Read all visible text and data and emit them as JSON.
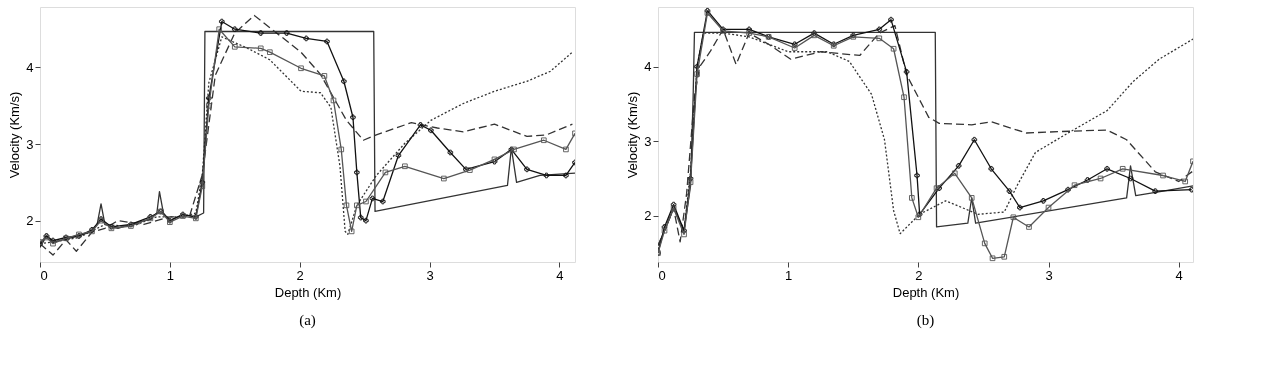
{
  "chart_data": [
    {
      "type": "line",
      "title": "(a)",
      "xlabel": "Depth (Km)",
      "ylabel": "Velocity (Km/s)",
      "xlim": [
        0,
        4.12
      ],
      "ylim": [
        1.46,
        4.79
      ],
      "xticks": [
        0,
        1,
        2,
        3,
        4
      ],
      "yticks": [
        2,
        3,
        4
      ],
      "grid": false,
      "series": [
        {
          "color": "#333333",
          "line_style": "solid",
          "marker": "none",
          "x": [
            0,
            0.05,
            0.1,
            0.2,
            0.3,
            0.4,
            0.44,
            0.47,
            0.5,
            0.6,
            0.7,
            0.85,
            0.9,
            0.92,
            0.95,
            1.0,
            1.1,
            1.2,
            1.26,
            1.27,
            2.57,
            2.58,
            3.6,
            3.63,
            3.67,
            3.85,
            4.12
          ],
          "values": [
            1.65,
            1.8,
            1.72,
            1.76,
            1.8,
            1.86,
            1.95,
            2.22,
            1.95,
            1.9,
            1.95,
            2.02,
            2.1,
            2.38,
            2.1,
            2.0,
            2.08,
            2.05,
            2.1,
            4.47,
            4.47,
            2.12,
            2.46,
            2.95,
            2.5,
            2.59,
            2.62
          ]
        },
        {
          "color": "#333333",
          "line_style": "dashed",
          "marker": "none",
          "x": [
            0,
            0.1,
            0.2,
            0.28,
            0.4,
            0.5,
            0.6,
            0.8,
            1.0,
            1.15,
            1.25,
            1.35,
            1.5,
            1.65,
            1.77,
            2.01,
            2.16,
            2.36,
            2.49,
            2.59,
            2.86,
            3.06,
            3.26,
            3.5,
            3.75,
            3.9,
            4.1
          ],
          "values": [
            1.7,
            1.55,
            1.75,
            1.6,
            1.85,
            1.9,
            2.0,
            1.95,
            2.05,
            2.05,
            2.6,
            3.9,
            4.45,
            4.68,
            4.52,
            4.2,
            3.91,
            3.31,
            3.05,
            3.12,
            3.28,
            3.21,
            3.16,
            3.26,
            3.1,
            3.12,
            3.26
          ]
        },
        {
          "color": "#333333",
          "line_style": "dotted",
          "marker": "none",
          "x": [
            0,
            0.1,
            0.2,
            0.3,
            0.5,
            0.7,
            0.9,
            1.1,
            1.2,
            1.25,
            1.3,
            1.4,
            1.6,
            1.77,
            2.01,
            2.16,
            2.24,
            2.31,
            2.35,
            2.37,
            2.44,
            2.59,
            2.81,
            3.01,
            3.26,
            3.5,
            3.75,
            3.93,
            4.1
          ],
          "values": [
            1.7,
            1.72,
            1.75,
            1.78,
            1.95,
            1.92,
            2.05,
            2.05,
            2.1,
            2.6,
            3.8,
            4.4,
            4.25,
            4.1,
            3.69,
            3.67,
            3.48,
            2.71,
            1.86,
            1.82,
            2.2,
            2.59,
            3.01,
            3.31,
            3.53,
            3.69,
            3.82,
            3.95,
            4.2
          ]
        },
        {
          "color": "#111111",
          "line_style": "solid",
          "marker": "cross",
          "x": [
            0,
            0.05,
            0.1,
            0.2,
            0.3,
            0.4,
            0.47,
            0.55,
            0.7,
            0.85,
            0.93,
            1.0,
            1.1,
            1.2,
            1.25,
            1.3,
            1.4,
            1.5,
            1.7,
            1.9,
            2.05,
            2.21,
            2.34,
            2.41,
            2.44,
            2.47,
            2.51,
            2.56,
            2.64,
            2.76,
            2.93,
            3.01,
            3.16,
            3.28,
            3.5,
            3.63,
            3.75,
            3.9,
            4.05,
            4.12
          ],
          "values": [
            1.7,
            1.8,
            1.74,
            1.78,
            1.8,
            1.88,
            2.02,
            1.92,
            1.95,
            2.05,
            2.12,
            2.0,
            2.08,
            2.05,
            2.5,
            3.6,
            4.6,
            4.5,
            4.45,
            4.45,
            4.38,
            4.34,
            3.82,
            3.35,
            2.63,
            2.04,
            2.0,
            2.29,
            2.25,
            2.85,
            3.25,
            3.18,
            2.89,
            2.67,
            2.77,
            2.93,
            2.67,
            2.59,
            2.59,
            2.76
          ]
        },
        {
          "color": "#555555",
          "line_style": "solid",
          "marker": "square",
          "x": [
            0,
            0.05,
            0.1,
            0.2,
            0.3,
            0.4,
            0.47,
            0.55,
            0.7,
            0.85,
            0.93,
            1.0,
            1.1,
            1.2,
            1.25,
            1.3,
            1.38,
            1.5,
            1.7,
            1.77,
            2.01,
            2.19,
            2.26,
            2.32,
            2.36,
            2.4,
            2.44,
            2.51,
            2.66,
            2.81,
            3.11,
            3.31,
            3.5,
            3.65,
            3.88,
            4.05,
            4.12
          ],
          "values": [
            1.72,
            1.78,
            1.7,
            1.77,
            1.82,
            1.86,
            2.0,
            1.9,
            1.93,
            2.03,
            2.12,
            1.98,
            2.06,
            2.03,
            2.45,
            3.5,
            4.5,
            4.27,
            4.25,
            4.2,
            3.99,
            3.89,
            3.57,
            2.93,
            2.2,
            1.86,
            2.2,
            2.25,
            2.63,
            2.71,
            2.55,
            2.66,
            2.8,
            2.93,
            3.05,
            2.93,
            3.14
          ]
        }
      ]
    },
    {
      "type": "line",
      "title": "(b)",
      "xlabel": "Depth (Km)",
      "ylabel": "Velocity (Km/s)",
      "xlim": [
        0,
        4.11
      ],
      "ylim": [
        1.38,
        4.8
      ],
      "xticks": [
        0,
        1,
        2,
        3,
        4
      ],
      "yticks": [
        2,
        3,
        4
      ],
      "grid": false,
      "series": [
        {
          "color": "#333333",
          "line_style": "solid",
          "marker": "none",
          "x": [
            0,
            0.05,
            0.12,
            0.2,
            0.25,
            0.27,
            0.28,
            2.13,
            2.14,
            2.38,
            2.41,
            2.44,
            3.6,
            3.63,
            3.67,
            3.88,
            4.11
          ],
          "values": [
            1.6,
            1.8,
            2.1,
            1.8,
            2.4,
            3.6,
            4.46,
            4.46,
            1.85,
            1.9,
            2.24,
            1.9,
            2.24,
            2.67,
            2.27,
            2.33,
            2.4
          ]
        },
        {
          "color": "#333333",
          "line_style": "dashed",
          "marker": "none",
          "x": [
            0,
            0.05,
            0.12,
            0.17,
            0.22,
            0.28,
            0.32,
            0.4,
            0.5,
            0.6,
            0.7,
            0.85,
            1.02,
            1.25,
            1.55,
            1.7,
            1.82,
            1.91,
            2.08,
            2.16,
            2.41,
            2.56,
            2.83,
            3.1,
            3.45,
            3.6,
            3.82,
            4.0,
            4.11
          ],
          "values": [
            1.6,
            1.8,
            2.1,
            1.65,
            2.3,
            3.6,
            4.0,
            4.2,
            4.5,
            4.03,
            4.45,
            4.3,
            4.1,
            4.2,
            4.15,
            4.45,
            4.55,
            3.89,
            3.32,
            3.24,
            3.22,
            3.26,
            3.11,
            3.13,
            3.15,
            3.02,
            2.59,
            2.46,
            2.6
          ]
        },
        {
          "color": "#333333",
          "line_style": "dotted",
          "marker": "none",
          "x": [
            0,
            0.05,
            0.12,
            0.2,
            0.25,
            0.3,
            0.35,
            0.5,
            0.7,
            1.0,
            1.3,
            1.47,
            1.64,
            1.74,
            1.81,
            1.86,
            2.01,
            2.21,
            2.46,
            2.66,
            2.76,
            2.9,
            3.15,
            3.45,
            3.65,
            3.85,
            4.11
          ],
          "values": [
            1.55,
            1.8,
            2.1,
            1.8,
            2.6,
            4.0,
            4.45,
            4.45,
            4.4,
            4.2,
            4.2,
            4.07,
            3.63,
            3.02,
            2.07,
            1.76,
            2.02,
            2.2,
            2.02,
            2.05,
            2.41,
            2.85,
            3.11,
            3.41,
            3.8,
            4.1,
            4.37
          ]
        },
        {
          "color": "#111111",
          "line_style": "solid",
          "marker": "cross",
          "x": [
            0,
            0.05,
            0.12,
            0.2,
            0.25,
            0.3,
            0.38,
            0.5,
            0.7,
            0.85,
            1.05,
            1.2,
            1.35,
            1.5,
            1.7,
            1.79,
            1.91,
            1.99,
            2.01,
            2.16,
            2.31,
            2.43,
            2.56,
            2.7,
            2.78,
            2.96,
            3.15,
            3.3,
            3.45,
            3.63,
            3.82,
            4.1
          ],
          "values": [
            1.5,
            1.85,
            2.15,
            1.8,
            2.5,
            4.0,
            4.75,
            4.5,
            4.5,
            4.4,
            4.3,
            4.45,
            4.3,
            4.42,
            4.5,
            4.63,
            3.93,
            2.54,
            2.02,
            2.37,
            2.67,
            3.02,
            2.63,
            2.33,
            2.11,
            2.2,
            2.35,
            2.48,
            2.63,
            2.5,
            2.33,
            2.35
          ]
        },
        {
          "color": "#555555",
          "line_style": "solid",
          "marker": "square",
          "x": [
            0,
            0.05,
            0.12,
            0.2,
            0.25,
            0.3,
            0.38,
            0.5,
            0.7,
            0.85,
            1.05,
            1.2,
            1.35,
            1.5,
            1.7,
            1.81,
            1.89,
            1.95,
            2.0,
            2.14,
            2.28,
            2.41,
            2.51,
            2.57,
            2.66,
            2.73,
            2.85,
            3.0,
            3.2,
            3.4,
            3.57,
            3.88,
            4.05,
            4.11
          ],
          "values": [
            1.5,
            1.8,
            2.1,
            1.75,
            2.45,
            3.9,
            4.72,
            4.48,
            4.45,
            4.4,
            4.25,
            4.42,
            4.28,
            4.4,
            4.38,
            4.24,
            3.59,
            2.24,
            1.98,
            2.37,
            2.57,
            2.24,
            1.63,
            1.43,
            1.45,
            1.98,
            1.85,
            2.11,
            2.41,
            2.5,
            2.63,
            2.54,
            2.46,
            2.73
          ]
        }
      ]
    }
  ]
}
